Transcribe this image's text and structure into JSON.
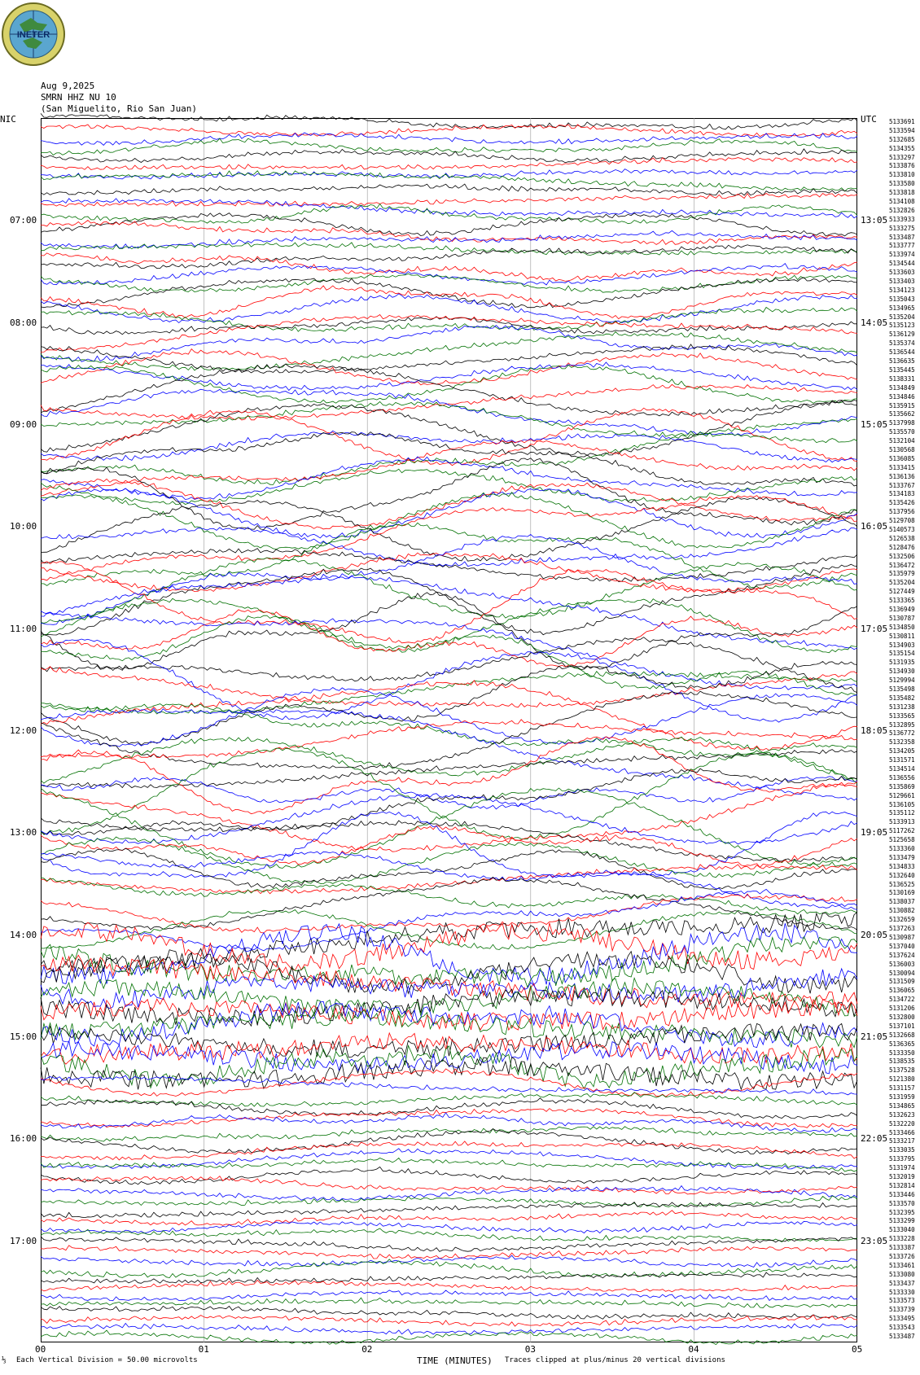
{
  "header": {
    "logo_text": "INETER",
    "date": "Aug 9,2025",
    "station": "SMRN HHZ NU 10",
    "location": "(San Miguelito, Rio San Juan)",
    "left_tz": "NIC",
    "right_tz": "UTC"
  },
  "chart_data": {
    "type": "line",
    "title": "SMRN HHZ NU 10",
    "xlabel": "TIME (MINUTES)",
    "x_ticks": [
      "00",
      "01",
      "02",
      "03",
      "04",
      "05"
    ],
    "xlim": [
      0,
      5
    ],
    "left_time_labels": [
      "07:00",
      "08:00",
      "09:00",
      "10:00",
      "11:00",
      "12:00",
      "13:00",
      "14:00",
      "15:00",
      "16:00",
      "17:00"
    ],
    "right_time_labels": [
      "13:05",
      "14:05",
      "15:05",
      "16:05",
      "17:05",
      "18:05",
      "19:05",
      "20:05",
      "21:05",
      "22:05",
      "23:05"
    ],
    "trace_count": 144,
    "trace_minutes": 5,
    "trace_colors": [
      "#000000",
      "#ff0000",
      "#0000ff",
      "#007000"
    ],
    "vertical_division": "Each Vertical Division =",
    "vertical_division_value": "50.00 microvolts",
    "clip_note": "Traces clipped at plus/minus 20 vertical divisions",
    "trace_values": [
      "5133691",
      "5133594",
      "5132685",
      "5134355",
      "5133297",
      "5133876",
      "5133810",
      "5133580",
      "5133818",
      "5134108",
      "5132826",
      "5133933",
      "5133275",
      "5133487",
      "5133777",
      "5133974",
      "5134544",
      "5133603",
      "5133403",
      "5134123",
      "5135043",
      "5134965",
      "5135204",
      "5135123",
      "5136129",
      "5135374",
      "5136544",
      "5136635",
      "5135445",
      "5138331",
      "5134849",
      "5134846",
      "5135915",
      "5135662",
      "5137998",
      "5135570",
      "5132104",
      "5130568",
      "5136085",
      "5133415",
      "5136136",
      "5133767",
      "5134183",
      "5135426",
      "5137956",
      "5129708",
      "5140573",
      "5126538",
      "5128476",
      "5132506",
      "5136472",
      "5135979",
      "5135204",
      "5127449",
      "5133365",
      "5136949",
      "5130787",
      "5134850",
      "5130811",
      "5134903",
      "5135154",
      "5131935",
      "5134930",
      "5129994",
      "5135498",
      "5135482",
      "5131238",
      "5133565",
      "5132895",
      "5136772",
      "5132358",
      "5134205",
      "5131571",
      "5134514",
      "5136556",
      "5135869",
      "5129661",
      "5136105",
      "5135112",
      "5133913",
      "5117262",
      "5125658",
      "5133360",
      "5133479",
      "5134833",
      "5132640",
      "5136525",
      "5130169",
      "5138037",
      "5130882",
      "5132659",
      "5137263",
      "5130987",
      "5137040",
      "5137624",
      "5136003",
      "5130094",
      "5131509",
      "5136065",
      "5134722",
      "5131206",
      "5132800",
      "5137101",
      "5132668",
      "5136365",
      "5133350",
      "5138535",
      "5137528",
      "5121380",
      "5131157",
      "5131959",
      "5134865",
      "5132623",
      "5132220",
      "5133466",
      "5133217",
      "5133035",
      "5133795",
      "5131974",
      "5132019",
      "5132814",
      "5133446",
      "5133570",
      "5132395",
      "5133299",
      "5133040",
      "5133228",
      "5133387",
      "5133726",
      "5133461",
      "5133080",
      "5133437",
      "5133330",
      "5133573",
      "5133739",
      "5133495",
      "5133543",
      "5133487",
      "5133375",
      "5133543",
      "5133033",
      "5132975",
      "5133099",
      "5133242"
    ]
  }
}
